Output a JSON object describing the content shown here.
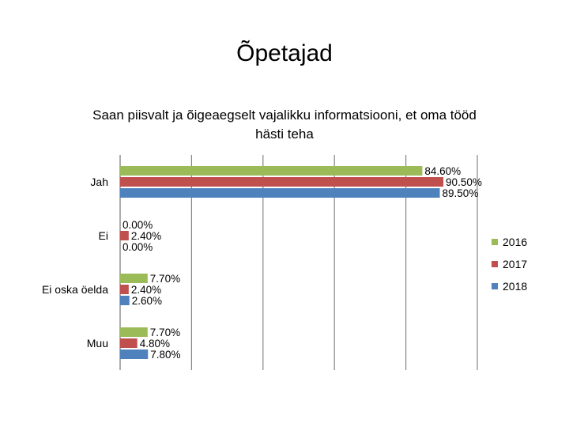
{
  "page": {
    "title": "Õpetajad"
  },
  "chart_data": {
    "type": "bar",
    "orientation": "horizontal",
    "title": "Saan piisvalt ja õigeaegselt vajalikku informatsiooni, et oma tööd hästi teha",
    "categories": [
      "Jah",
      "Ei",
      "Ei oska öelda",
      "Muu"
    ],
    "series": [
      {
        "name": "2016",
        "color": "#9bbb59",
        "values": [
          84.6,
          0.0,
          7.7,
          7.7
        ],
        "labels": [
          "84.60%",
          "0.00%",
          "7.70%",
          "7.70%"
        ]
      },
      {
        "name": "2017",
        "color": "#c0504d",
        "values": [
          90.5,
          2.4,
          2.4,
          4.8
        ],
        "labels": [
          "90.50%",
          "2.40%",
          "2.40%",
          "4.80%"
        ]
      },
      {
        "name": "2018",
        "color": "#4f81bd",
        "values": [
          89.5,
          0.0,
          2.6,
          7.8
        ],
        "labels": [
          "89.50%",
          "0.00%",
          "2.60%",
          "7.80%"
        ]
      }
    ],
    "xlim": [
      0,
      100
    ],
    "grid": true,
    "legend": "right"
  }
}
